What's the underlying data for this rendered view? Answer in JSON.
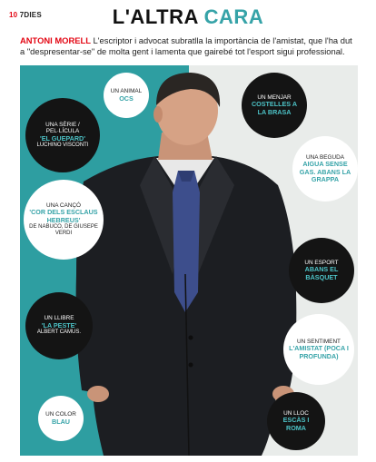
{
  "header": {
    "page_number": "10",
    "section": "7DIES",
    "title_word1": "L'ALTRA",
    "title_word2": "CARA"
  },
  "intro": {
    "name": "ANTONI MORELL",
    "text": " L'escriptor i advocat subratlla la importància de l'amistat, que l'ha dut a \"despresentar-se\" de molta gent i lamenta que gairebé tot l'esport sigui professional."
  },
  "colors": {
    "accent_red": "#e30613",
    "accent_teal": "#36a3a8",
    "panel_teal": "#2e9ea1"
  },
  "bubbles": {
    "animal": {
      "label": "UN ANIMAL",
      "value": "OCS"
    },
    "serie": {
      "label": "UNA SÈRIE / PEL·LÍCULA",
      "value": "'EL GUEPARD'",
      "sub": "LUCHINO VISCONTI"
    },
    "menjar": {
      "label": "UN MENJAR",
      "value": "COSTELLES A LA BRASA"
    },
    "beguda": {
      "label": "UNA BEGUDA",
      "value": "AIGUA SENSE GAS. ABANS LA GRAPPA"
    },
    "canco": {
      "label": "UNA CANÇÓ",
      "value": "'COR DELS ESCLAUS HEBREUS'",
      "sub": "DE NABUCO, DE GIUSEPE VERDI"
    },
    "esport": {
      "label": "UN ESPORT",
      "value": "ABANS EL BÀSQUET"
    },
    "llibre": {
      "label": "UN LLIBRE",
      "value": "'LA PESTE'",
      "sub": "ALBERT CAMUS."
    },
    "sentiment": {
      "label": "UN SENTIMENT",
      "value": "L'AMISTAT (POCA I PROFUNDA)"
    },
    "color": {
      "label": "UN COLOR",
      "value": "BLAU"
    },
    "lloc": {
      "label": "UN LLOC",
      "value": "ESCÀS I ROMA"
    }
  }
}
